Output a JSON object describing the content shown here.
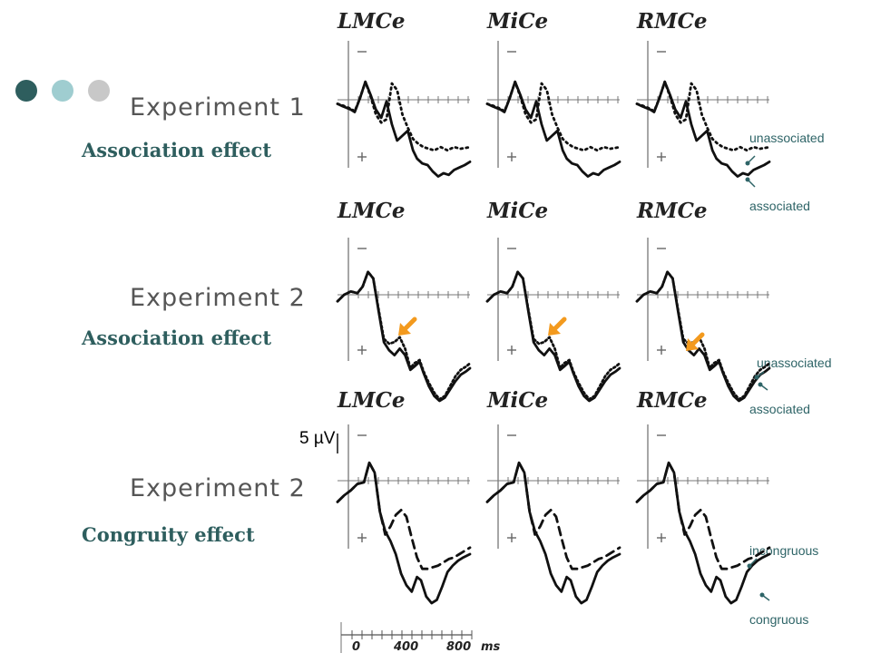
{
  "slide": {
    "colors": {
      "dot_dark": "#2e5e5e",
      "dot_light": "#9fcdd0",
      "dot_grey": "#c8c8c8",
      "accent_arrow": "#f39a1e",
      "label_teal": "#2e6467"
    },
    "rows": [
      {
        "experiment": "Experiment 1",
        "effect": "Association effect",
        "channels": [
          "LMCe",
          "MiCe",
          "RMCe"
        ],
        "legend_top": "unassociated",
        "legend_bottom": "associated"
      },
      {
        "experiment": "Experiment 2",
        "effect": "Association effect",
        "channels": [
          "LMCe",
          "MiCe",
          "RMCe"
        ],
        "legend_top": "unassociated",
        "legend_bottom": "associated"
      },
      {
        "experiment": "Experiment 2",
        "effect": "Congruity effect",
        "channels": [
          "LMCe",
          "MiCe",
          "RMCe"
        ],
        "legend_top": "incongruous",
        "legend_bottom": "congruous"
      }
    ],
    "scale_label": "5 µV",
    "time_axis": {
      "ticks": [
        "0",
        "400",
        "800"
      ],
      "unit": "ms"
    }
  }
}
